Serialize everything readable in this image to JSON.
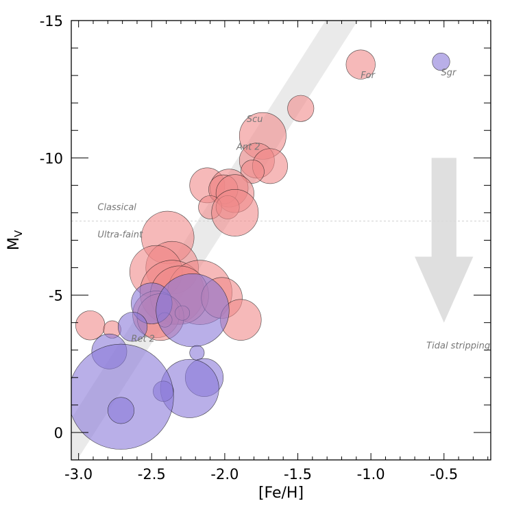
{
  "chart_data": {
    "type": "scatter",
    "xlabel": "[Fe/H]",
    "ylabel": "M",
    "ylabel_sub": "V",
    "xlim": [
      -3.05,
      -0.18
    ],
    "ylim": [
      1.0,
      -15.0
    ],
    "y_inverted": true,
    "grid": false,
    "x_ticks": [
      {
        "value": -3.0,
        "label": "-3.0"
      },
      {
        "value": -2.5,
        "label": "-2.5"
      },
      {
        "value": -2.0,
        "label": "-2.0"
      },
      {
        "value": -1.5,
        "label": "-1.5"
      },
      {
        "value": -1.0,
        "label": "-1.0"
      },
      {
        "value": -0.5,
        "label": "-0.5"
      }
    ],
    "y_ticks": [
      {
        "value": -15,
        "label": "-15"
      },
      {
        "value": -10,
        "label": "-10"
      },
      {
        "value": -5,
        "label": "-5"
      },
      {
        "value": 0,
        "label": "0"
      }
    ],
    "relation_band": {
      "description": "luminosity-metallicity relation",
      "start_feh": -3.0,
      "start_mv": 0.0,
      "end_feh": -1.2,
      "end_mv": -15.0,
      "half_width_feh": 0.11,
      "color": "#d8d8d8"
    },
    "divider": {
      "mv": -7.7,
      "above_label": "Classical",
      "below_label": "Ultra-faint"
    },
    "arrow": {
      "feh": -0.5,
      "mv_start": -10.0,
      "mv_end": -4.0,
      "label": "Tidal stripping",
      "color": "#d9d9d9"
    },
    "colors": {
      "pink": "#f08a8a",
      "blue": "#8a7ad8",
      "edge": "#1a1a1a"
    },
    "series": [
      {
        "name": "red",
        "points": [
          {
            "feh": -1.07,
            "mv": -13.4,
            "size": 0.1,
            "label": "For"
          },
          {
            "feh": -1.48,
            "mv": -11.8,
            "size": 0.09
          },
          {
            "feh": -1.74,
            "mv": -10.8,
            "size": 0.16
          },
          {
            "feh": -1.78,
            "mv": -9.9,
            "size": 0.12
          },
          {
            "feh": -1.69,
            "mv": -9.7,
            "size": 0.12
          },
          {
            "feh": -1.81,
            "mv": -9.5,
            "size": 0.08
          },
          {
            "feh": -2.12,
            "mv": -9.0,
            "size": 0.12
          },
          {
            "feh": -1.97,
            "mv": -8.9,
            "size": 0.13
          },
          {
            "feh": -2.01,
            "mv": -8.85,
            "size": 0.1
          },
          {
            "feh": -1.93,
            "mv": -8.7,
            "size": 0.13
          },
          {
            "feh": -2.1,
            "mv": -8.2,
            "size": 0.08
          },
          {
            "feh": -1.98,
            "mv": -8.2,
            "size": 0.08
          },
          {
            "feh": -1.93,
            "mv": -8.0,
            "size": 0.16
          },
          {
            "feh": -2.39,
            "mv": -7.1,
            "size": 0.18
          },
          {
            "feh": -2.36,
            "mv": -6.0,
            "size": 0.18
          },
          {
            "feh": -2.47,
            "mv": -5.85,
            "size": 0.18
          },
          {
            "feh": -2.36,
            "mv": -5.1,
            "size": 0.22
          },
          {
            "feh": -2.17,
            "mv": -5.1,
            "size": 0.22
          },
          {
            "feh": -2.31,
            "mv": -5.0,
            "size": 0.2
          },
          {
            "feh": -2.02,
            "mv": -4.9,
            "size": 0.14
          },
          {
            "feh": -2.47,
            "mv": -4.3,
            "size": 0.16
          },
          {
            "feh": -2.44,
            "mv": -4.2,
            "size": 0.16
          },
          {
            "feh": -2.29,
            "mv": -4.35,
            "size": 0.05
          },
          {
            "feh": -2.41,
            "mv": -4.1,
            "size": 0.05
          },
          {
            "feh": -1.89,
            "mv": -4.1,
            "size": 0.14
          },
          {
            "feh": -2.92,
            "mv": -3.9,
            "size": 0.1
          },
          {
            "feh": -2.77,
            "mv": -3.75,
            "size": 0.06
          }
        ]
      },
      {
        "name": "blue",
        "points": [
          {
            "feh": -0.52,
            "mv": -13.5,
            "size": 0.06,
            "label": "Sgr"
          },
          {
            "feh": -2.5,
            "mv": -4.7,
            "size": 0.14
          },
          {
            "feh": -2.22,
            "mv": -4.45,
            "size": 0.25
          },
          {
            "feh": -2.63,
            "mv": -3.85,
            "size": 0.1
          },
          {
            "feh": -2.79,
            "mv": -2.95,
            "size": 0.12,
            "label": "Ret 2"
          },
          {
            "feh": -2.19,
            "mv": -2.9,
            "size": 0.05
          },
          {
            "feh": -2.14,
            "mv": -2.0,
            "size": 0.13
          },
          {
            "feh": -2.24,
            "mv": -1.6,
            "size": 0.2
          },
          {
            "feh": -2.42,
            "mv": -1.5,
            "size": 0.07
          },
          {
            "feh": -2.71,
            "mv": -1.3,
            "size": 0.36
          },
          {
            "feh": -2.71,
            "mv": -0.8,
            "size": 0.09
          }
        ]
      }
    ],
    "annotations": [
      {
        "text": "For",
        "feh": -1.07,
        "mv": -12.9
      },
      {
        "text": "Sgr",
        "feh": -0.52,
        "mv": -13.0
      },
      {
        "text": "Scu",
        "feh": -1.85,
        "mv": -11.3
      },
      {
        "text": "Ant 2",
        "feh": -1.92,
        "mv": -10.3
      },
      {
        "text": "Classical",
        "feh": -2.87,
        "mv": -8.1
      },
      {
        "text": "Ultra-faint",
        "feh": -2.87,
        "mv": -7.1
      },
      {
        "text": "Ret 2",
        "feh": -2.64,
        "mv": -3.3
      },
      {
        "text": "Tidal stripping",
        "feh": -0.62,
        "mv": -3.05
      }
    ]
  }
}
